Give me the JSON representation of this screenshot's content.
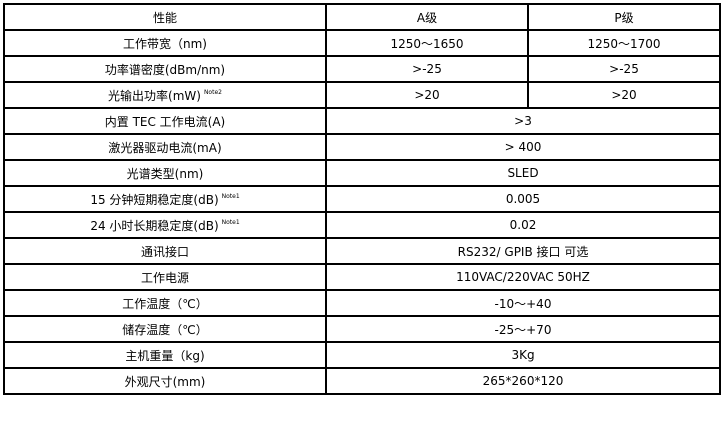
{
  "header": {
    "param": "性能",
    "a": "A级",
    "p": "P级"
  },
  "rows": [
    {
      "label": "工作带宽（nm)",
      "a": "1250～1650",
      "p": "1250～1700"
    },
    {
      "label": "功率谱密度(dBm/nm)",
      "a": ">-25",
      "p": ">-25"
    },
    {
      "label": "光输出功率(mW)",
      "note": "Note2",
      "a": ">20",
      "p": ">20"
    },
    {
      "label": "内置 TEC 工作电流(A)",
      "value": ">3"
    },
    {
      "label": "激光器驱动电流(mA)",
      "value": "> 400"
    },
    {
      "label": "光谱类型(nm)",
      "value": "SLED"
    },
    {
      "label": "15 分钟短期稳定度(dB)",
      "note": "Note1",
      "value": "0.005"
    },
    {
      "label": "24 小时长期稳定度(dB)",
      "note": "Note1",
      "value": "0.02"
    },
    {
      "label": "通讯接口",
      "value": "RS232/ GPIB 接口  可选"
    },
    {
      "label": "工作电源",
      "value": "110VAC/220VAC 50HZ"
    },
    {
      "label": "工作温度（℃）",
      "value": "-10～+40"
    },
    {
      "label": "储存温度（℃）",
      "value": "-25～+70"
    },
    {
      "label": "主机重量（kg)",
      "value": "3Kg"
    },
    {
      "label": "外观尺寸(mm)",
      "value": "265*260*120"
    }
  ]
}
